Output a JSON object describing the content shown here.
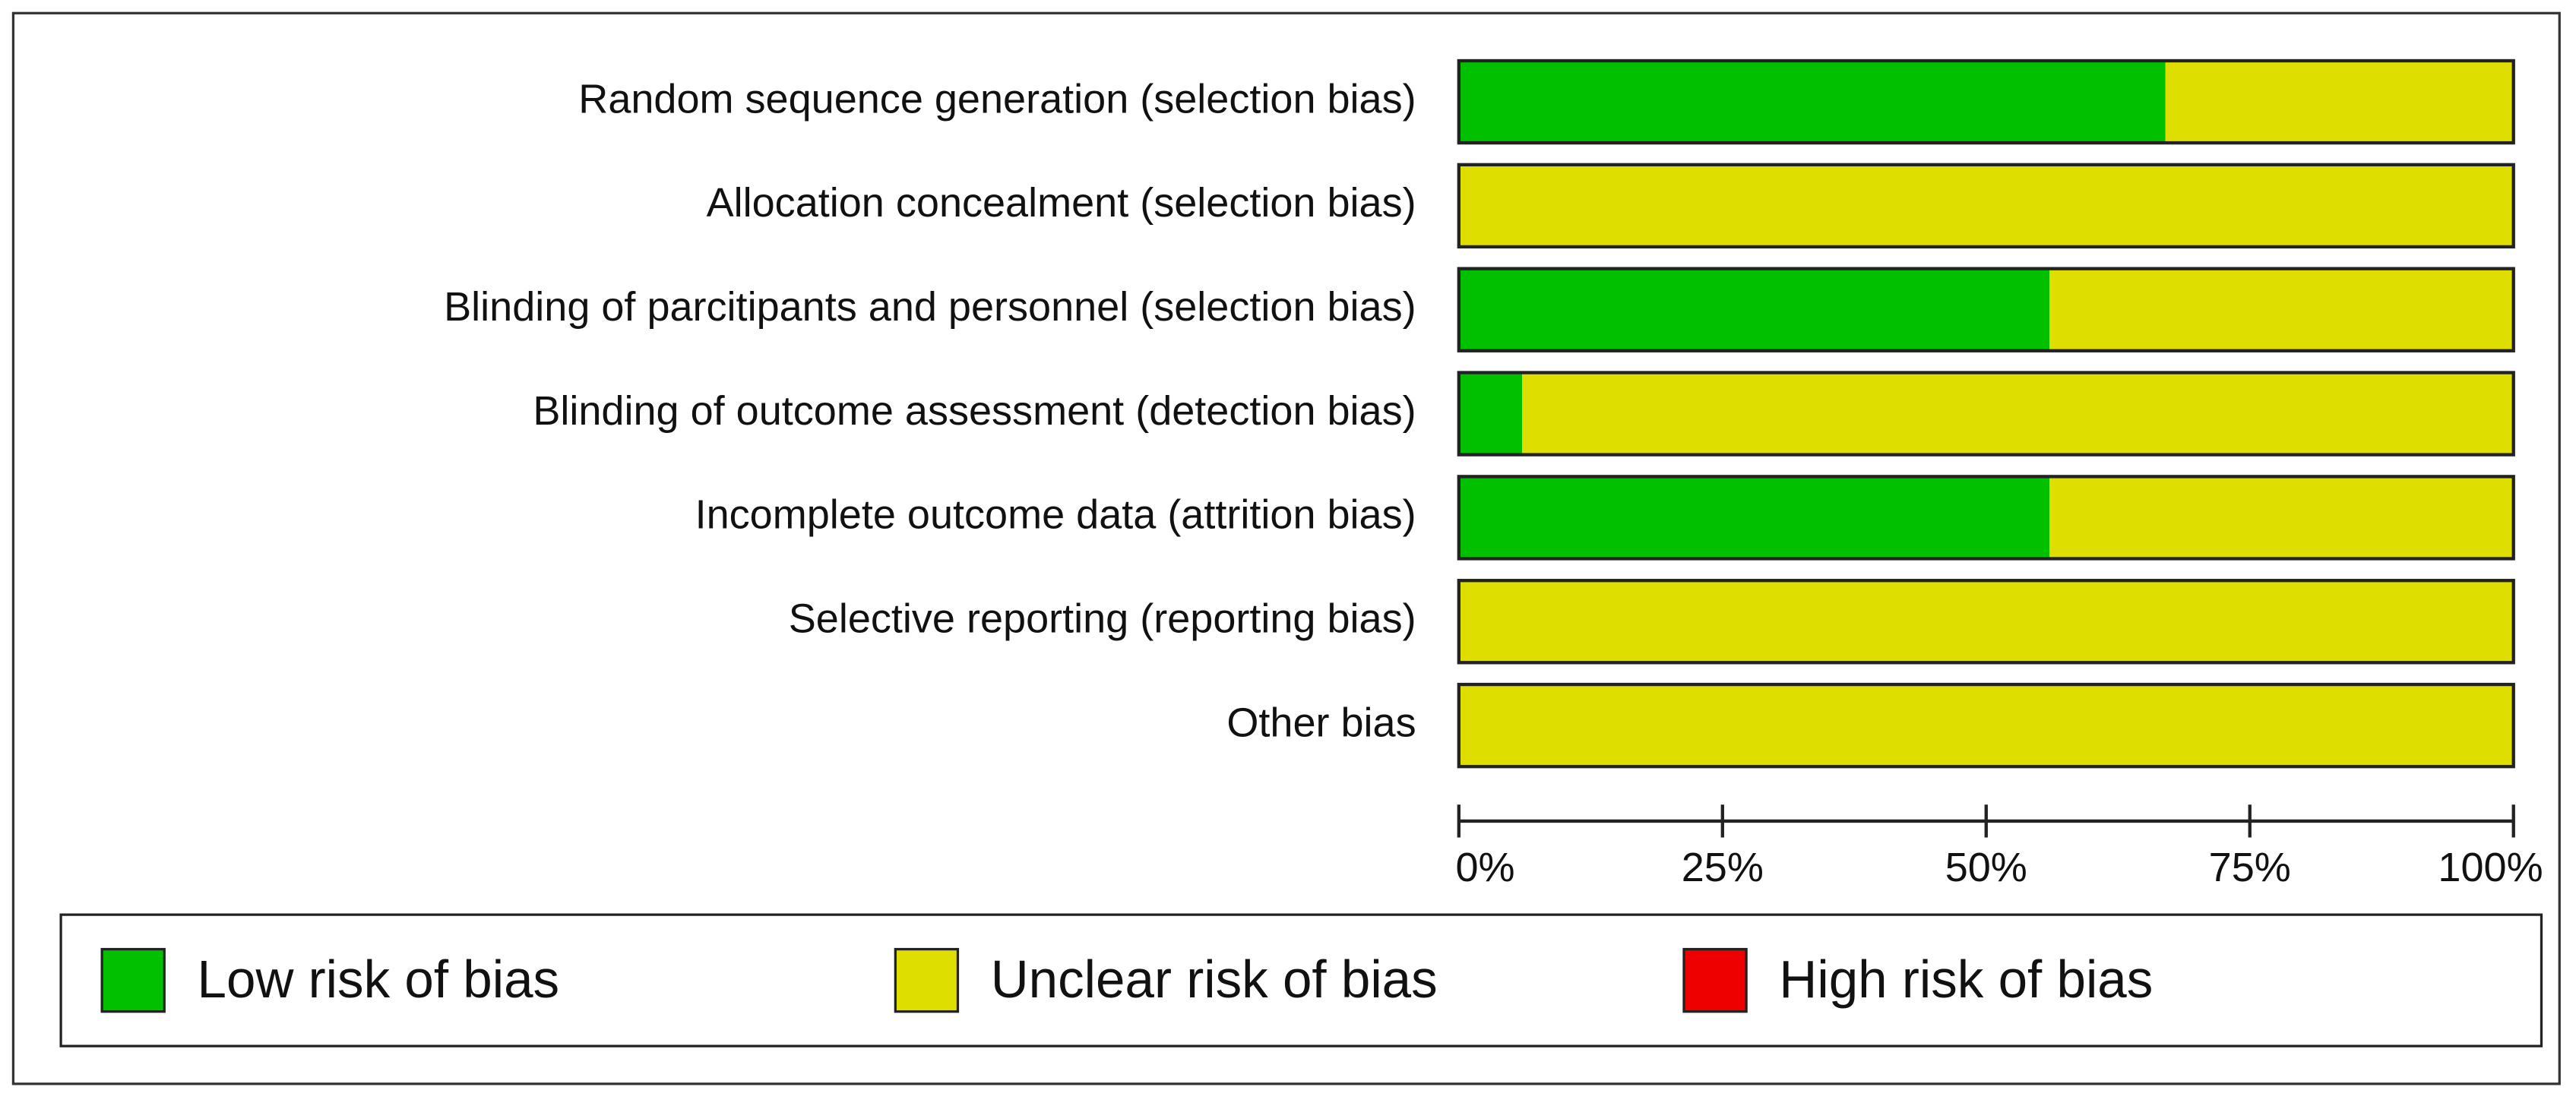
{
  "chart_data": {
    "type": "stacked-barh",
    "categories": [
      "Random sequence generation (selection bias)",
      "Allocation concealment (selection bias)",
      "Blinding of parcitipants and personnel (selection bias)",
      "Blinding of outcome assessment (detection bias)",
      "Incomplete outcome data (attrition bias)",
      "Selective reporting (reporting bias)",
      "Other bias"
    ],
    "series": [
      {
        "name": "Low risk of bias",
        "color": "#00c000",
        "values": [
          67,
          0,
          56,
          6,
          56,
          0,
          0
        ]
      },
      {
        "name": "Unclear risk of bias",
        "color": "#dede00",
        "values": [
          33,
          100,
          44,
          94,
          44,
          100,
          100
        ]
      },
      {
        "name": "High risk of bias",
        "color": "#ee0000",
        "values": [
          0,
          0,
          0,
          0,
          0,
          0,
          0
        ]
      }
    ],
    "xlim": [
      0,
      100
    ],
    "xticks": [
      {
        "value": 0,
        "label": "0%"
      },
      {
        "value": 25,
        "label": "25%"
      },
      {
        "value": 50,
        "label": "50%"
      },
      {
        "value": 75,
        "label": "75%"
      },
      {
        "value": 100,
        "label": "100%"
      }
    ]
  }
}
